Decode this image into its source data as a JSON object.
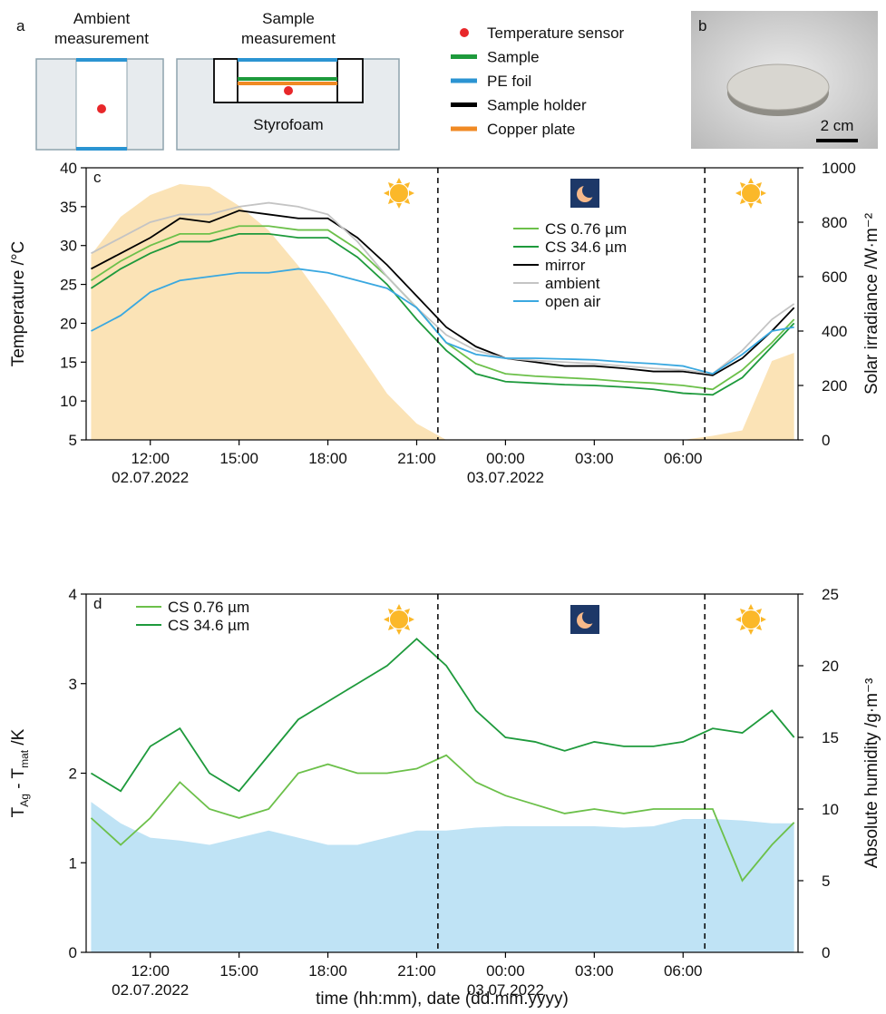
{
  "figure_top": {
    "panel_a": "a",
    "ambient_title": [
      "Ambient",
      "measurement"
    ],
    "sample_title": [
      "Sample",
      "measurement"
    ],
    "styrofoam": "Styrofoam",
    "legend": [
      {
        "label": "Temperature sensor",
        "color": "#e8272a",
        "shape": "dot"
      },
      {
        "label": "Sample",
        "color": "#1e9a3c",
        "shape": "line"
      },
      {
        "label": "PE foil",
        "color": "#2b94d2",
        "shape": "line"
      },
      {
        "label": "Sample holder",
        "color": "#000000",
        "shape": "line"
      },
      {
        "label": "Copper plate",
        "color": "#f08a24",
        "shape": "line"
      }
    ],
    "panel_b": "b",
    "scale_bar": "2 cm"
  },
  "chart_data": [
    {
      "type": "line",
      "panel_label": "c",
      "y_label": "Temperature /°C",
      "y2_label": "Solar irradiance /W·m⁻²",
      "x": [
        "2022-07-02T10:00",
        "2022-07-02T11:00",
        "2022-07-02T12:00",
        "2022-07-02T13:00",
        "2022-07-02T14:00",
        "2022-07-02T15:00",
        "2022-07-02T16:00",
        "2022-07-02T17:00",
        "2022-07-02T18:00",
        "2022-07-02T19:00",
        "2022-07-02T20:00",
        "2022-07-02T21:00",
        "2022-07-02T22:00",
        "2022-07-02T23:00",
        "2022-07-03T00:00",
        "2022-07-03T01:00",
        "2022-07-03T02:00",
        "2022-07-03T03:00",
        "2022-07-03T04:00",
        "2022-07-03T05:00",
        "2022-07-03T06:00",
        "2022-07-03T07:00",
        "2022-07-03T08:00",
        "2022-07-03T09:00",
        "2022-07-03T09:45"
      ],
      "xlim": [
        "2022-07-02T09:50",
        "2022-07-03T09:53"
      ],
      "xticks": [
        {
          "value": "2022-07-02T12:00",
          "label": "12:00"
        },
        {
          "value": "2022-07-02T15:00",
          "label": "15:00"
        },
        {
          "value": "2022-07-02T18:00",
          "label": "18:00"
        },
        {
          "value": "2022-07-02T21:00",
          "label": "21:00"
        },
        {
          "value": "2022-07-03T00:00",
          "label": "00:00"
        },
        {
          "value": "2022-07-03T03:00",
          "label": "03:00"
        },
        {
          "value": "2022-07-03T06:00",
          "label": "06:00"
        }
      ],
      "xdate_ticks": [
        {
          "value": "2022-07-02T12:00",
          "label": "02.07.2022"
        },
        {
          "value": "2022-07-03T00:00",
          "label": "03.07.2022"
        }
      ],
      "ylim": [
        5,
        40
      ],
      "yticks": [
        5,
        10,
        15,
        20,
        25,
        30,
        35,
        40
      ],
      "y2lim": [
        0,
        1000
      ],
      "y2ticks": [
        0,
        200,
        400,
        600,
        800,
        1000
      ],
      "vlines": [
        "2022-07-02T21:43",
        "2022-07-03T06:44"
      ],
      "legend": "upper center",
      "series": [
        {
          "type": "area",
          "axis": "y2",
          "color": "#fbe3b6",
          "values": [
            680,
            820,
            900,
            940,
            930,
            860,
            770,
            640,
            490,
            330,
            170,
            60,
            0,
            0,
            0,
            0,
            0,
            0,
            0,
            0,
            0,
            15,
            35,
            290,
            320
          ]
        },
        {
          "name": "CS 0.76 µm",
          "color": "#6cc04a",
          "values": [
            25.5,
            28,
            30,
            31.5,
            31.5,
            32.5,
            32.5,
            32,
            32,
            29.5,
            26,
            22,
            17.5,
            14.8,
            13.5,
            13.2,
            13,
            12.8,
            12.5,
            12.3,
            12,
            11.5,
            14,
            17.5,
            20.5
          ]
        },
        {
          "name": "CS 34.6 µm",
          "color": "#1e9a3c",
          "values": [
            24.5,
            27,
            29,
            30.5,
            30.5,
            31.5,
            31.5,
            31,
            31,
            28.5,
            25,
            20.5,
            16.5,
            13.5,
            12.5,
            12.3,
            12.1,
            12,
            11.8,
            11.5,
            11,
            10.8,
            13,
            17,
            20
          ]
        },
        {
          "name": "mirror",
          "color": "#000000",
          "values": [
            27,
            29,
            31,
            33.5,
            33,
            34.5,
            34,
            33.5,
            33.5,
            31,
            27.5,
            23.5,
            19.5,
            17,
            15.5,
            15,
            14.5,
            14.5,
            14.2,
            13.8,
            13.8,
            13.3,
            15.5,
            19,
            22
          ]
        },
        {
          "name": "ambient",
          "color": "#c4c4c4",
          "values": [
            29,
            31,
            33,
            34,
            34,
            35,
            35.5,
            35,
            34,
            30.5,
            26,
            22,
            18.5,
            16.5,
            15.5,
            15.2,
            15,
            14.8,
            14.5,
            14.2,
            14,
            13.5,
            16.5,
            20.5,
            22.5
          ]
        },
        {
          "name": "open air",
          "color": "#3aa8e0",
          "values": [
            19,
            21,
            24,
            25.5,
            26,
            26.5,
            26.5,
            27,
            26.5,
            25.5,
            24.5,
            22,
            17.5,
            16,
            15.5,
            15.5,
            15.4,
            15.3,
            15,
            14.8,
            14.5,
            13.5,
            16,
            19,
            19.5
          ]
        }
      ]
    },
    {
      "type": "line",
      "panel_label": "d",
      "y_label_parts": [
        "T",
        "Ag",
        " - T",
        "mat",
        " /K"
      ],
      "y2_label": "Absolute humidity /g·m⁻³",
      "x_label": "time (hh:mm), date (dd.mm.yyyy)",
      "x": [
        "2022-07-02T10:00",
        "2022-07-02T11:00",
        "2022-07-02T12:00",
        "2022-07-02T13:00",
        "2022-07-02T14:00",
        "2022-07-02T15:00",
        "2022-07-02T16:00",
        "2022-07-02T17:00",
        "2022-07-02T18:00",
        "2022-07-02T19:00",
        "2022-07-02T20:00",
        "2022-07-02T21:00",
        "2022-07-02T22:00",
        "2022-07-02T23:00",
        "2022-07-03T00:00",
        "2022-07-03T01:00",
        "2022-07-03T02:00",
        "2022-07-03T03:00",
        "2022-07-03T04:00",
        "2022-07-03T05:00",
        "2022-07-03T06:00",
        "2022-07-03T07:00",
        "2022-07-03T08:00",
        "2022-07-03T09:00",
        "2022-07-03T09:45"
      ],
      "xlim": [
        "2022-07-02T09:50",
        "2022-07-03T09:53"
      ],
      "xticks": [
        {
          "value": "2022-07-02T12:00",
          "label": "12:00"
        },
        {
          "value": "2022-07-02T15:00",
          "label": "15:00"
        },
        {
          "value": "2022-07-02T18:00",
          "label": "18:00"
        },
        {
          "value": "2022-07-02T21:00",
          "label": "21:00"
        },
        {
          "value": "2022-07-03T00:00",
          "label": "00:00"
        },
        {
          "value": "2022-07-03T03:00",
          "label": "03:00"
        },
        {
          "value": "2022-07-03T06:00",
          "label": "06:00"
        }
      ],
      "xdate_ticks": [
        {
          "value": "2022-07-02T12:00",
          "label": "02.07.2022"
        },
        {
          "value": "2022-07-03T00:00",
          "label": "03.07.2022"
        }
      ],
      "ylim": [
        0,
        4
      ],
      "yticks": [
        0,
        1,
        2,
        3,
        4
      ],
      "y2lim": [
        0,
        25
      ],
      "y2ticks": [
        0,
        5,
        10,
        15,
        20,
        25
      ],
      "vlines": [
        "2022-07-02T21:43",
        "2022-07-03T06:44"
      ],
      "legend": "upper left",
      "series": [
        {
          "type": "area",
          "axis": "y2",
          "color": "#bfe3f5",
          "values": [
            10.5,
            9,
            8,
            7.8,
            7.5,
            8,
            8.5,
            8,
            7.5,
            7.5,
            8,
            8.5,
            8.5,
            8.7,
            8.8,
            8.8,
            8.8,
            8.8,
            8.7,
            8.8,
            9.3,
            9.3,
            9.2,
            9,
            9
          ]
        },
        {
          "name": "CS 0.76 µm",
          "color": "#6cc04a",
          "values": [
            1.5,
            1.2,
            1.5,
            1.9,
            1.6,
            1.5,
            1.6,
            2,
            2.1,
            2,
            2,
            2.05,
            2.2,
            1.9,
            1.75,
            1.65,
            1.55,
            1.6,
            1.55,
            1.6,
            1.6,
            1.6,
            0.8,
            1.2,
            1.45
          ]
        },
        {
          "name": "CS 34.6 µm",
          "color": "#1e9a3c",
          "values": [
            2,
            1.8,
            2.3,
            2.5,
            2,
            1.8,
            2.2,
            2.6,
            2.8,
            3,
            3.2,
            3.5,
            3.2,
            2.7,
            2.4,
            2.35,
            2.25,
            2.35,
            2.3,
            2.3,
            2.35,
            2.5,
            2.45,
            2.7,
            2.4
          ]
        }
      ]
    }
  ]
}
